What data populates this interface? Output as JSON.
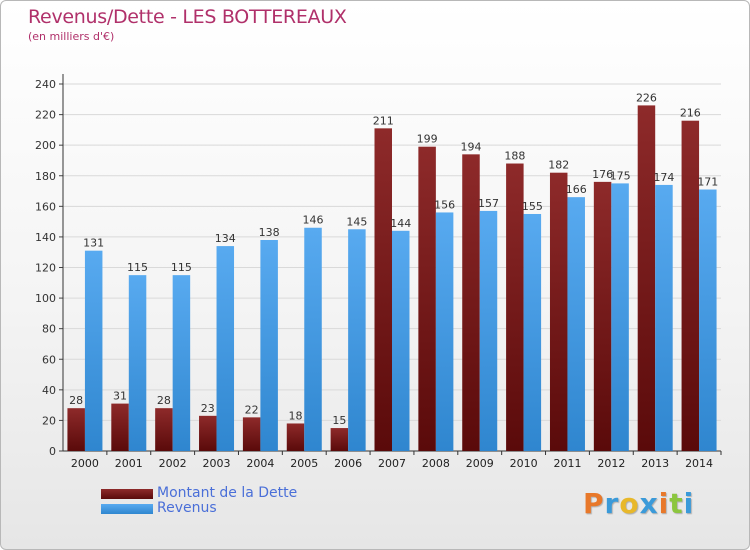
{
  "chart_data": {
    "type": "bar",
    "title": "Revenus/Dette - LES BOTTEREAUX",
    "subtitle": "(en milliers d'€)",
    "categories": [
      "2000",
      "2001",
      "2002",
      "2003",
      "2004",
      "2005",
      "2006",
      "2007",
      "2008",
      "2009",
      "2010",
      "2011",
      "2012",
      "2013",
      "2014"
    ],
    "series": [
      {
        "name": "Montant de la Dette",
        "color": "#7a1a1a",
        "values": [
          28,
          31,
          28,
          23,
          22,
          18,
          15,
          211,
          199,
          194,
          188,
          182,
          176,
          226,
          216
        ]
      },
      {
        "name": "Revenus",
        "color": "#4aa0e6",
        "values": [
          131,
          115,
          115,
          134,
          138,
          146,
          145,
          144,
          156,
          157,
          155,
          166,
          175,
          174,
          171
        ]
      }
    ],
    "ylim": [
      0,
      240
    ],
    "yticks": [
      0,
      20,
      40,
      60,
      80,
      100,
      120,
      140,
      160,
      180,
      200,
      220,
      240
    ],
    "grid": true,
    "legend": "bottom-left"
  },
  "logo": {
    "text": "Proxiti",
    "letters": [
      {
        "ch": "P",
        "color": "#e8782a"
      },
      {
        "ch": "r",
        "color": "#3a9ad9"
      },
      {
        "ch": "o",
        "color": "#e8b82a"
      },
      {
        "ch": "x",
        "color": "#3a9ad9"
      },
      {
        "ch": "i",
        "color": "#e8782a"
      },
      {
        "ch": "t",
        "color": "#8cc63f"
      },
      {
        "ch": "i",
        "color": "#3a9ad9"
      }
    ]
  }
}
